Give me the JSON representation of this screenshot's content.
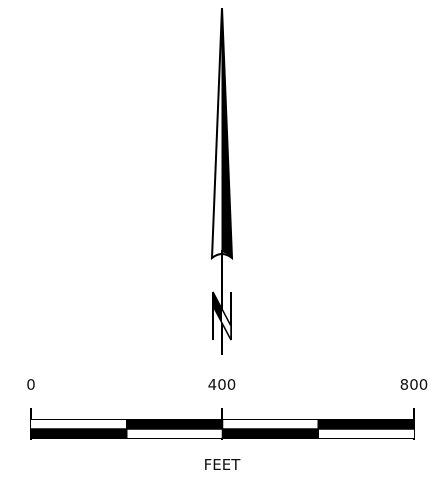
{
  "north_arrow": {
    "symbol": "N",
    "icon": "north-arrow-icon"
  },
  "scale_bar": {
    "tick_labels": [
      "0",
      "400",
      "800"
    ],
    "unit_label": "FEET",
    "range": [
      0,
      800
    ],
    "segments": 4
  },
  "colors": {
    "ink": "#000000",
    "background": "#ffffff"
  }
}
